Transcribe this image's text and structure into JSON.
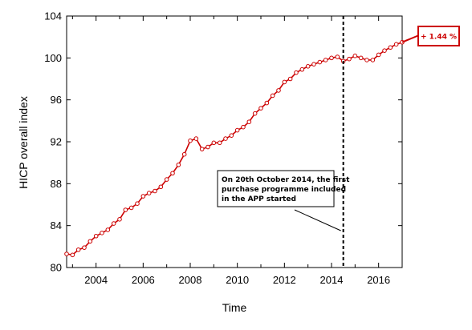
{
  "chart_data": {
    "type": "line",
    "title": "",
    "xlabel": "Time",
    "ylabel": "HICP overall index",
    "xlim": [
      2002.75,
      2017.0
    ],
    "ylim": [
      80,
      104
    ],
    "x_ticks": [
      2004,
      2006,
      2008,
      2010,
      2012,
      2014,
      2016
    ],
    "y_ticks": [
      80,
      84,
      88,
      92,
      96,
      100,
      104
    ],
    "grid": false,
    "legend": "none",
    "colors": {
      "series": "#cc0000",
      "vline": "#000000",
      "callout_border": "#cc0000",
      "callout_text": "#cc0000"
    },
    "series": [
      {
        "values_x": [
          2002.75,
          2003.0,
          2003.25,
          2003.5,
          2003.75,
          2004.0,
          2004.25,
          2004.5,
          2004.75,
          2005.0,
          2005.25,
          2005.5,
          2005.75,
          2006.0,
          2006.25,
          2006.5,
          2006.75,
          2007.0,
          2007.25,
          2007.5,
          2007.75,
          2008.0,
          2008.25,
          2008.5,
          2008.75,
          2009.0,
          2009.25,
          2009.5,
          2009.75,
          2010.0,
          2010.25,
          2010.5,
          2010.75,
          2011.0,
          2011.25,
          2011.5,
          2011.75,
          2012.0,
          2012.25,
          2012.5,
          2012.75,
          2013.0,
          2013.25,
          2013.5,
          2013.75,
          2014.0,
          2014.25,
          2014.5,
          2014.75,
          2015.0,
          2015.25,
          2015.5,
          2015.75,
          2016.0,
          2016.25,
          2016.5,
          2016.75,
          2017.0
        ],
        "values_y": [
          81.3,
          81.2,
          81.7,
          81.9,
          82.5,
          83.0,
          83.3,
          83.6,
          84.2,
          84.6,
          85.5,
          85.7,
          86.1,
          86.8,
          87.1,
          87.3,
          87.7,
          88.4,
          89.0,
          89.8,
          90.8,
          92.1,
          92.3,
          91.3,
          91.5,
          91.9,
          91.9,
          92.3,
          92.6,
          93.1,
          93.4,
          93.9,
          94.7,
          95.2,
          95.7,
          96.4,
          96.9,
          97.7,
          98.0,
          98.6,
          98.9,
          99.2,
          99.4,
          99.6,
          99.8,
          100.0,
          100.1,
          99.7,
          99.9,
          100.2,
          100.0,
          99.8,
          99.8,
          100.3,
          100.7,
          101.0,
          101.3,
          101.5
        ]
      }
    ],
    "vline": {
      "x": 2014.5,
      "style": "dashed"
    },
    "annotation": {
      "lines": [
        "On 20th October 2014, the first",
        "purchase programme included",
        "in the APP started"
      ]
    },
    "callout": {
      "text": "+ 1.44 %"
    }
  }
}
